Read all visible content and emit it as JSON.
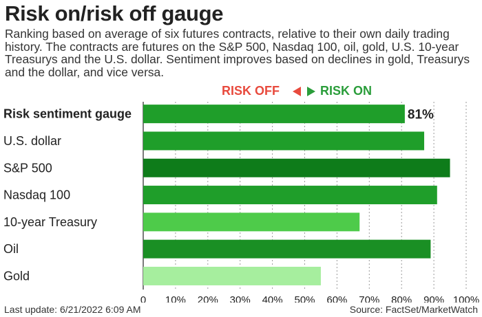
{
  "title": "Risk on/risk off gauge",
  "subtitle": "Ranking based on average of six futures contracts, relative to their own daily trading history. The contracts are futures on the S&P 500, Nasdaq 100, oil, gold, U.S. 10-year Treasurys and the U.S. dollar. Sentiment improves based on declines in gold, Treasurys and the dollar, and vice versa.",
  "legend": {
    "risk_off": "RISK OFF",
    "risk_on": "RISK ON"
  },
  "footer": {
    "last_update": "Last update: 6/21/2022 6:09 AM",
    "source": "Source: FactSet/MarketWatch"
  },
  "colors": {
    "risk_off": "#e84a3d",
    "risk_on": "#2a9d3a"
  },
  "chart_data": {
    "type": "bar",
    "orientation": "horizontal",
    "categories": [
      "Risk sentiment gauge",
      "U.S. dollar",
      "S&P 500",
      "Nasdaq 100",
      "10-year Treasury",
      "Oil",
      "Gold"
    ],
    "values": [
      81,
      87,
      95,
      91,
      67,
      89,
      55
    ],
    "bar_colors": [
      "#1f9e2a",
      "#1f9e2a",
      "#0e7c1a",
      "#1f9e2a",
      "#4ecb4a",
      "#1a8f24",
      "#a6ee9e"
    ],
    "data_labels": [
      "81%",
      "",
      "",
      "",
      "",
      "",
      ""
    ],
    "x_ticks": [
      "0",
      "10%",
      "20%",
      "30%",
      "40%",
      "50%",
      "60%",
      "70%",
      "80%",
      "90%",
      "100%"
    ],
    "xlim": [
      0,
      100
    ],
    "grid": true
  }
}
